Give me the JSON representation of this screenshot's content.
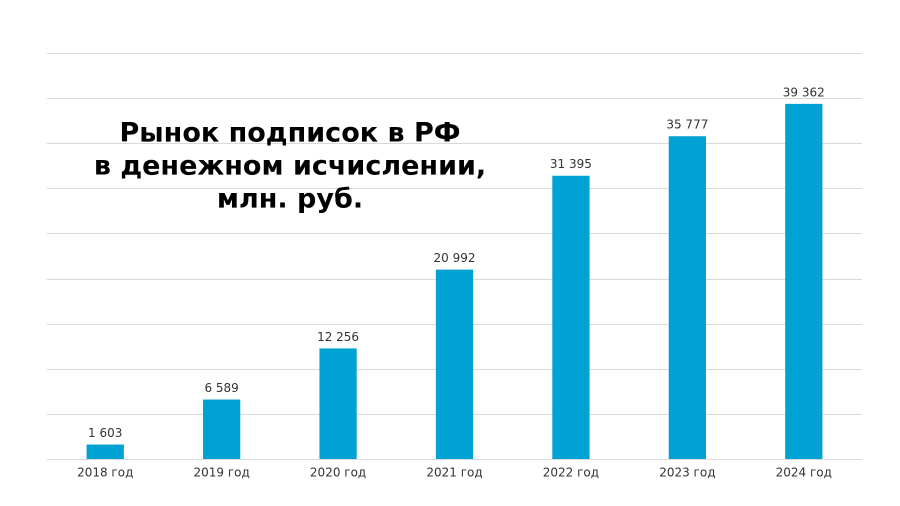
{
  "chart_data": {
    "type": "bar",
    "title": [
      "Рынок подписок в РФ",
      "в денежном исчислении,",
      "млн. руб."
    ],
    "categories": [
      "2018 год",
      "2019 год",
      "2020 год",
      "2021 год",
      "2022 год",
      "2023 год",
      "2024 год"
    ],
    "values": [
      1603,
      6589,
      12256,
      20992,
      31395,
      35777,
      39362
    ],
    "value_labels": [
      "1 603",
      "6 589",
      "12 256",
      "20 992",
      "31 395",
      "35 777",
      "39 362"
    ],
    "color": "#00a2d4",
    "ylim": [
      0,
      45000
    ],
    "yticks": [
      0,
      5000,
      10000,
      15000,
      20000,
      25000,
      30000,
      35000,
      40000,
      45000
    ],
    "grid": true
  }
}
